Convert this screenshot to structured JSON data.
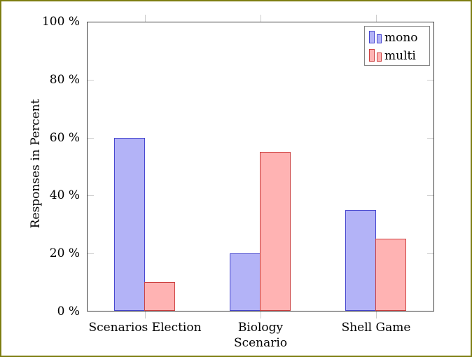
{
  "chart_data": {
    "type": "bar",
    "bar_mode": "grouped",
    "title": "",
    "categories": [
      "Scenarios Election",
      "Biology",
      "Shell Game"
    ],
    "series": [
      {
        "name": "mono",
        "values": [
          60,
          20,
          35
        ],
        "fill": "#b3b3f7",
        "stroke": "#4747cf"
      },
      {
        "name": "multi",
        "values": [
          10,
          55,
          25
        ],
        "fill": "#ffb3b3",
        "stroke": "#cc4040"
      }
    ],
    "xlabel": "Scenario",
    "ylabel": "Responses in Percent",
    "ylim": [
      0,
      100
    ],
    "yticks": [
      {
        "value": 0,
        "label": "0 %"
      },
      {
        "value": 20,
        "label": "20 %"
      },
      {
        "value": 40,
        "label": "40 %"
      },
      {
        "value": 60,
        "label": "60 %"
      },
      {
        "value": 80,
        "label": "80 %"
      },
      {
        "value": 100,
        "label": "100 %"
      }
    ],
    "grid": false,
    "legend_position": "top-right"
  },
  "colors": {
    "frame_border": "#7d7d11",
    "axis": "#3d3d3d",
    "tick": "#cccccc",
    "legend_border": "#848484",
    "background": "#ffffff"
  }
}
